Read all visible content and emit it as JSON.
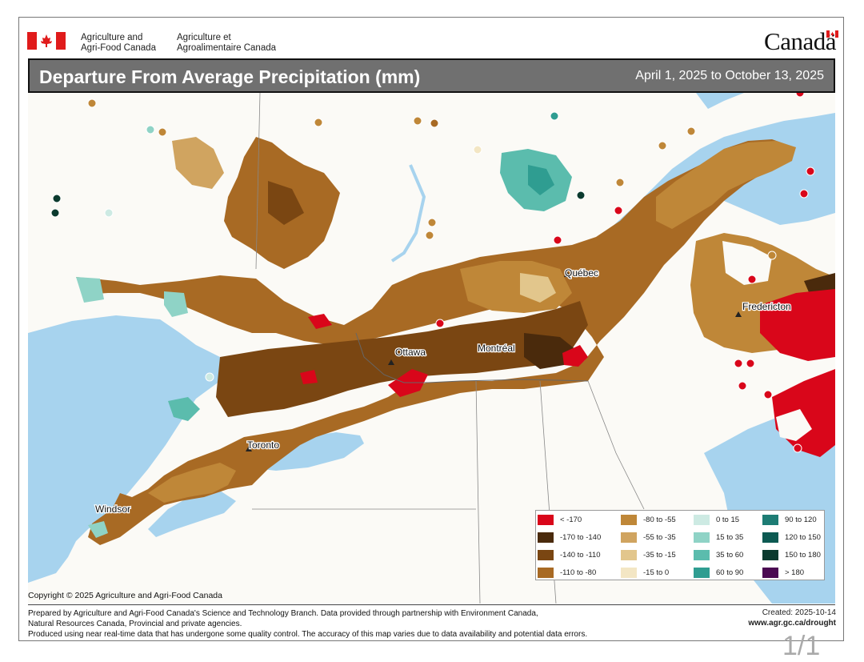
{
  "header": {
    "org_en_line1": "Agriculture and",
    "org_en_line2": "Agri-Food Canada",
    "org_fr_line1": "Agriculture et",
    "org_fr_line2": "Agroalimentaire Canada",
    "wordmark": "Canadä",
    "colors": {
      "flag_red": "#e01b1b"
    }
  },
  "title": {
    "main": "Departure From Average Precipitation (mm)",
    "date_range": "April 1, 2025 to October 13, 2025"
  },
  "map": {
    "cities": [
      "Québec",
      "Fredericton",
      "Ottawa",
      "Montréal",
      "Toronto",
      "Windsor"
    ],
    "colors": {
      "water": "#a7d3ee",
      "land": "#fbfaf6"
    }
  },
  "legend": {
    "items": [
      {
        "label": "< -170",
        "color": "#d9061a"
      },
      {
        "label": "-170 to -140",
        "color": "#4a2a0c"
      },
      {
        "label": "-140 to -110",
        "color": "#7a4612"
      },
      {
        "label": "-110 to -80",
        "color": "#a86a24"
      },
      {
        "label": "-80 to -55",
        "color": "#bf8738"
      },
      {
        "label": "-55 to -35",
        "color": "#d0a460"
      },
      {
        "label": "-35 to -15",
        "color": "#e2c68c"
      },
      {
        "label": "-15 to 0",
        "color": "#f3e6c4"
      },
      {
        "label": "0 to 15",
        "color": "#cdeae3"
      },
      {
        "label": "15 to 35",
        "color": "#8fd3c6"
      },
      {
        "label": "35 to 60",
        "color": "#5bbcad"
      },
      {
        "label": "60 to 90",
        "color": "#2f9d91"
      },
      {
        "label": "90 to 120",
        "color": "#1d7c74"
      },
      {
        "label": "120 to 150",
        "color": "#0c5a52"
      },
      {
        "label": "150 to 180",
        "color": "#0b3a2e"
      },
      {
        "label": "> 180",
        "color": "#4b0a52"
      }
    ]
  },
  "footer": {
    "copyright": "Copyright © 2025 Agriculture and Agri-Food Canada",
    "line1": "Prepared by Agriculture and Agri-Food Canada's Science and Technology Branch. Data provided through partnership with Environment Canada,",
    "line2": "Natural Resources Canada, Provincial and private agencies.",
    "line3": "Produced using near real-time data that has undergone some quality control. The accuracy of this map varies due to data availability and potential data errors.",
    "created": "Created: 2025-10-14",
    "url": "www.agr.gc.ca/drought",
    "page": "1/1"
  }
}
